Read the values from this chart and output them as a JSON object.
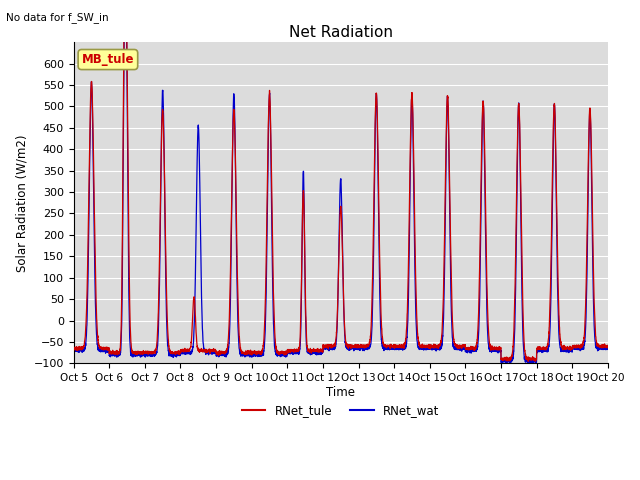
{
  "title": "Net Radiation",
  "note": "No data for f_SW_in",
  "ylabel": "Solar Radiation (W/m2)",
  "xlabel": "Time",
  "ylim": [
    -100,
    650
  ],
  "yticks": [
    -100,
    -50,
    0,
    50,
    100,
    150,
    200,
    250,
    300,
    350,
    400,
    450,
    500,
    550,
    600
  ],
  "xtick_labels": [
    "Oct 5",
    "Oct 6",
    "Oct 7",
    "Oct 8",
    "Oct 9",
    "Oct 10",
    "Oct 11",
    "Oct 12",
    "Oct 13",
    "Oct 14",
    "Oct 15",
    "Oct 16",
    "Oct 17",
    "Oct 18",
    "Oct 19",
    "Oct 20"
  ],
  "legend_entries": [
    "RNet_tule",
    "RNet_wat"
  ],
  "legend_colors": [
    "#cc0000",
    "#0000cc"
  ],
  "line_color_tule": "#cc0000",
  "line_color_wat": "#0000cc",
  "bg_color": "#dcdcdc",
  "grid_color": "#ffffff",
  "annotation_text": "MB_tule",
  "annotation_bg": "#ffff99",
  "annotation_border": "#999944"
}
